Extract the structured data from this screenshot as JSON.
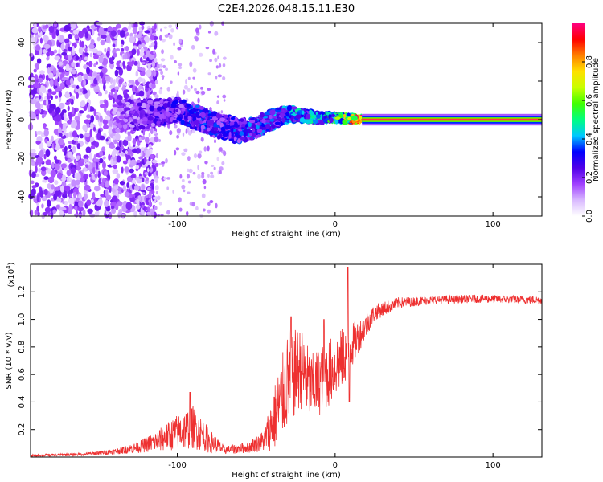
{
  "title": "C2E4.2026.048.15.11.E30",
  "chart_data": [
    {
      "type": "heatmap",
      "name": "spectrogram",
      "xlabel": "Height of straight line (km)",
      "ylabel": "Frequency (Hz)",
      "xlim": [
        -193,
        131
      ],
      "ylim": [
        -50,
        50
      ],
      "xticks": [
        -100,
        0,
        100
      ],
      "yticks": [
        -40,
        -20,
        0,
        20,
        40
      ],
      "xtick_labels": [
        "-100",
        "0",
        "100"
      ],
      "ytick_labels": [
        "-40",
        "-20",
        "0",
        "20",
        "40"
      ],
      "colorbar": {
        "label": "Normalized spectral amplitude",
        "range": [
          0,
          1
        ],
        "ticks": [
          0.0,
          0.2,
          0.4,
          0.6,
          0.8
        ],
        "tick_labels": [
          "0.0",
          "0.2",
          "0.4",
          "0.6",
          "0.8"
        ],
        "colors": [
          "#ffffff",
          "#d8b8ff",
          "#a040ff",
          "#5000e8",
          "#0000ff",
          "#00c8ff",
          "#00ff80",
          "#40ff00",
          "#c8ff00",
          "#ffe000",
          "#ff8000",
          "#ff0000",
          "#ff0080"
        ]
      },
      "ridge": [
        {
          "x": -140,
          "y": 2,
          "spread": 8,
          "amp": 0.18
        },
        {
          "x": -120,
          "y": 3,
          "spread": 7,
          "amp": 0.25
        },
        {
          "x": -100,
          "y": 5,
          "spread": 6,
          "amp": 0.3
        },
        {
          "x": -90,
          "y": 2,
          "spread": 6,
          "amp": 0.35
        },
        {
          "x": -75,
          "y": -3,
          "spread": 6,
          "amp": 0.35
        },
        {
          "x": -60,
          "y": -6,
          "spread": 6,
          "amp": 0.35
        },
        {
          "x": -50,
          "y": -4,
          "spread": 5,
          "amp": 0.38
        },
        {
          "x": -40,
          "y": 0,
          "spread": 5,
          "amp": 0.4
        },
        {
          "x": -30,
          "y": 3,
          "spread": 4,
          "amp": 0.42
        },
        {
          "x": -20,
          "y": 2,
          "spread": 3,
          "amp": 0.45
        },
        {
          "x": -10,
          "y": 1,
          "spread": 2.5,
          "amp": 0.5
        },
        {
          "x": 0,
          "y": 1,
          "spread": 2,
          "amp": 0.6
        },
        {
          "x": 10,
          "y": 0.5,
          "spread": 2,
          "amp": 0.8
        },
        {
          "x": 17,
          "y": 0.3,
          "spread": 1.5,
          "amp": 1.0
        }
      ],
      "steady_line": {
        "x_start": 17,
        "x_end": 131,
        "y": 0,
        "amp": 1.0
      }
    },
    {
      "type": "line",
      "name": "snr",
      "xlabel": "Height of straight line (km)",
      "ylabel": "SNR (10 * v/v)",
      "y_scale_label": "(x10",
      "y_scale_exp": "4",
      "y_scale_close": ")",
      "color": "#ee3030",
      "xlim": [
        -193,
        131
      ],
      "ylim": [
        0,
        1.4
      ],
      "xticks": [
        -100,
        0,
        100
      ],
      "xtick_labels": [
        "-100",
        "0",
        "100"
      ],
      "yticks": [
        0.2,
        0.4,
        0.6,
        0.8,
        1.0,
        1.2
      ],
      "ytick_labels": [
        "0.2",
        "0.4",
        "0.6",
        "0.8",
        "1.0",
        "1.2"
      ],
      "envelope": [
        {
          "x": -193,
          "mean": 0.01,
          "noise": 0.01
        },
        {
          "x": -160,
          "mean": 0.02,
          "noise": 0.01
        },
        {
          "x": -140,
          "mean": 0.04,
          "noise": 0.02
        },
        {
          "x": -125,
          "mean": 0.07,
          "noise": 0.04
        },
        {
          "x": -112,
          "mean": 0.12,
          "noise": 0.08
        },
        {
          "x": -100,
          "mean": 0.18,
          "noise": 0.13
        },
        {
          "x": -90,
          "mean": 0.22,
          "noise": 0.16
        },
        {
          "x": -80,
          "mean": 0.12,
          "noise": 0.09
        },
        {
          "x": -70,
          "mean": 0.05,
          "noise": 0.03
        },
        {
          "x": -55,
          "mean": 0.07,
          "noise": 0.04
        },
        {
          "x": -45,
          "mean": 0.12,
          "noise": 0.08
        },
        {
          "x": -38,
          "mean": 0.3,
          "noise": 0.25
        },
        {
          "x": -30,
          "mean": 0.55,
          "noise": 0.35
        },
        {
          "x": -22,
          "mean": 0.65,
          "noise": 0.3
        },
        {
          "x": -15,
          "mean": 0.5,
          "noise": 0.25
        },
        {
          "x": -5,
          "mean": 0.6,
          "noise": 0.25
        },
        {
          "x": 5,
          "mean": 0.72,
          "noise": 0.22
        },
        {
          "x": 15,
          "mean": 0.88,
          "noise": 0.12
        },
        {
          "x": 25,
          "mean": 1.05,
          "noise": 0.06
        },
        {
          "x": 40,
          "mean": 1.12,
          "noise": 0.04
        },
        {
          "x": 60,
          "mean": 1.14,
          "noise": 0.03
        },
        {
          "x": 90,
          "mean": 1.15,
          "noise": 0.03
        },
        {
          "x": 131,
          "mean": 1.14,
          "noise": 0.03
        }
      ],
      "spikes": [
        {
          "x": 8,
          "y": 1.38
        },
        {
          "x": 9,
          "y": 0.4
        },
        {
          "x": -28,
          "y": 1.02
        },
        {
          "x": -7,
          "y": 1.0
        },
        {
          "x": -92,
          "y": 0.47
        }
      ]
    }
  ]
}
